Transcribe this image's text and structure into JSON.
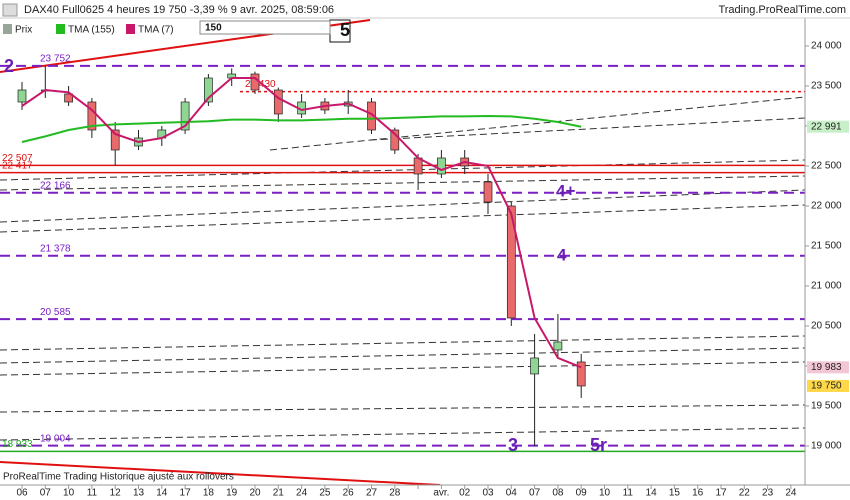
{
  "chart_data": {
    "type": "candlestick",
    "title": "DAX40 Full0625 4 heures 19 750 -3,39 % 9 avr. 2025, 08:59:06",
    "source": "Trading.ProRealTime.com",
    "footer": "ProRealTime Trading  Historique ajusté aux rollovers",
    "categories": [
      "06",
      "07",
      "10",
      "11",
      "12",
      "13",
      "14",
      "17",
      "18",
      "19",
      "20",
      "21",
      "24",
      "25",
      "26",
      "27",
      "28",
      null,
      "avr.",
      "02",
      "03",
      "04",
      "07",
      "08",
      "09",
      "10",
      "11",
      "14",
      "15",
      "16",
      "17",
      "22",
      "23",
      "24"
    ],
    "price": {
      "name": "Prix",
      "up_color": "#8fd694",
      "down_color": "#e86a6a",
      "legend_color": "#9aa59a",
      "open": [
        23300,
        23450,
        23400,
        23300,
        22950,
        22750,
        22850,
        22950,
        23300,
        23600,
        23650,
        23450,
        23150,
        23300,
        23250,
        23300,
        22950,
        22600,
        22400,
        22600,
        22300,
        22000,
        19900,
        20200,
        20050,
        null,
        null,
        null,
        null,
        null,
        null,
        null,
        null,
        null
      ],
      "high": [
        23550,
        23750,
        23500,
        23350,
        23050,
        22950,
        23000,
        23350,
        23650,
        23720,
        23680,
        23480,
        23400,
        23350,
        23450,
        23350,
        22980,
        22650,
        22700,
        22700,
        22400,
        22050,
        20400,
        20650,
        20150,
        null,
        null,
        null,
        null,
        null,
        null,
        null,
        null,
        null
      ],
      "low": [
        23200,
        23350,
        23250,
        22850,
        22500,
        22700,
        22750,
        22900,
        23250,
        23500,
        23400,
        23050,
        23100,
        23150,
        23150,
        22900,
        22650,
        22200,
        22350,
        22400,
        21900,
        20500,
        19000,
        20100,
        19600,
        null,
        null,
        null,
        null,
        null,
        null,
        null,
        null,
        null
      ],
      "close": [
        23450,
        23450,
        23300,
        22950,
        22700,
        22850,
        22950,
        23300,
        23600,
        23650,
        23450,
        23150,
        23300,
        23200,
        23300,
        22950,
        22700,
        22400,
        22600,
        22500,
        22050,
        20600,
        20100,
        20300,
        19750,
        null,
        null,
        null,
        null,
        null,
        null,
        null,
        null,
        null
      ]
    },
    "series": [
      {
        "name": "TMA (155)",
        "color": "#22bb22",
        "values": [
          22800,
          22870,
          22950,
          23000,
          23020,
          23030,
          23040,
          23050,
          23060,
          23080,
          23080,
          23070,
          23070,
          23080,
          23090,
          23090,
          23100,
          23110,
          23120,
          23120,
          23125,
          23120,
          23090,
          23050,
          22991,
          null,
          null,
          null,
          null,
          null,
          null,
          null,
          null,
          null
        ]
      },
      {
        "name": "TMA (7)",
        "color": "#c8186a",
        "values": [
          23250,
          23450,
          23420,
          23200,
          22900,
          22800,
          22850,
          23000,
          23350,
          23600,
          23600,
          23350,
          23200,
          23250,
          23280,
          23150,
          22900,
          22600,
          22450,
          22550,
          22500,
          21900,
          20600,
          20100,
          19983,
          null,
          null,
          null,
          null,
          null,
          null,
          null,
          null,
          null
        ]
      }
    ],
    "ylim": [
      18512,
      24350
    ],
    "yticks": [
      {
        "value": 19000,
        "label": "19 000"
      },
      {
        "value": 19500,
        "label": "19 500"
      },
      {
        "value": 20000,
        "label": "20 000"
      },
      {
        "value": 20500,
        "label": "20 500"
      },
      {
        "value": 21000,
        "label": "21 000"
      },
      {
        "value": 21500,
        "label": "21 500"
      },
      {
        "value": 22000,
        "label": "22 000"
      },
      {
        "value": 22500,
        "label": "22 500"
      },
      {
        "value": 23000,
        "label": "23 000"
      },
      {
        "value": 23500,
        "label": "23 500"
      },
      {
        "value": 24000,
        "label": "24 000"
      }
    ],
    "levels": [
      {
        "value": 23752,
        "label": "23 752",
        "color": "#7a1fc4",
        "style": "dashed"
      },
      {
        "value": 22166,
        "label": "22 166",
        "color": "#7a1fc4",
        "style": "dashed"
      },
      {
        "value": 21378,
        "label": "21 378",
        "color": "#7a1fc4",
        "style": "dashed"
      },
      {
        "value": 20585,
        "label": "20 585",
        "color": "#7a1fc4",
        "style": "dashed"
      },
      {
        "value": 19004,
        "label": "19 004",
        "color": "#7a1fc4",
        "style": "dashed"
      },
      {
        "value": 22507,
        "label": "22 507",
        "color": "#dd1111",
        "style": "solid"
      },
      {
        "value": 22417,
        "label": "22 417",
        "color": "#dd1111",
        "style": "solid"
      },
      {
        "value": 23430,
        "label": "23 430",
        "color": "#dd1111",
        "style": "dotted"
      },
      {
        "value": 18933,
        "label": "18 933",
        "color": "#22aa22",
        "style": "solid"
      }
    ],
    "last_values": [
      {
        "value": 22991,
        "label": "22 991",
        "color": "#c8f0c8"
      },
      {
        "value": 19983,
        "label": "19 983",
        "color": "#f3c6d6"
      },
      {
        "value": 19750,
        "label": "19 750",
        "color": "#ffd84a"
      }
    ],
    "annotations": [
      "2",
      "5",
      "4+",
      "4",
      "3",
      "5r",
      "150"
    ]
  }
}
